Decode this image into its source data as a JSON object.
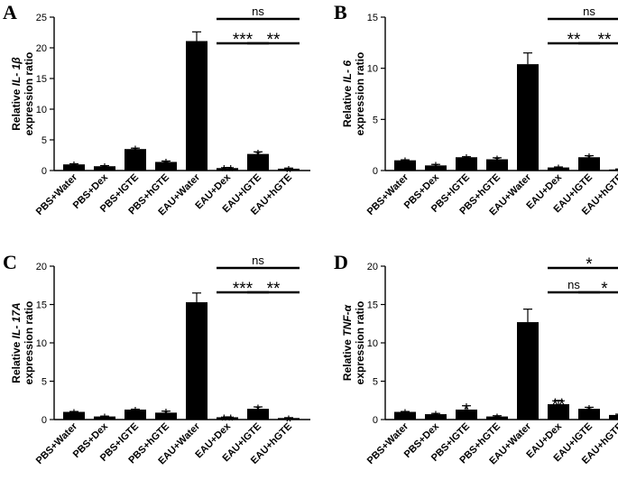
{
  "chart_data": [
    {
      "panel_label": "A",
      "type": "bar",
      "ylabel_prefix": "Relative ",
      "gene": "IL- 1β",
      "ylabel_suffix": "expression ratio",
      "ylim": [
        0,
        25
      ],
      "yticks": [
        0,
        5,
        10,
        15,
        20,
        25
      ],
      "categories": [
        "PBS+Water",
        "PBS+Dex",
        "PBS+lGTE",
        "PBS+hGTE",
        "EAU+Water",
        "EAU+Dex",
        "EAU+lGTE",
        "EAU+hGTE"
      ],
      "values": [
        1.0,
        0.7,
        3.5,
        1.4,
        21.1,
        0.4,
        2.7,
        0.3
      ],
      "errors": [
        0.1,
        0.1,
        0.15,
        0.15,
        1.5,
        0.1,
        0.35,
        0.1
      ],
      "bar_annotations": [
        "*",
        "*",
        "*",
        "*",
        "",
        "**",
        "*",
        "*"
      ],
      "comparisons": [
        {
          "from": 5,
          "to": 7,
          "label": "ns",
          "level": 0
        },
        {
          "from": 5,
          "to": 6,
          "label": "***",
          "level": 1
        },
        {
          "from": 6,
          "to": 7,
          "label": "**",
          "level": 1
        }
      ]
    },
    {
      "panel_label": "B",
      "type": "bar",
      "ylabel_prefix": "Relative ",
      "gene": "IL- 6",
      "ylabel_suffix": "expression ratio",
      "ylim": [
        0,
        15
      ],
      "yticks": [
        0,
        5,
        10,
        15
      ],
      "categories": [
        "PBS+Water",
        "PBS+Dex",
        "PBS+lGTE",
        "PBS+hGTE",
        "EAU+Water",
        "EAU+Dex",
        "EAU+lGTE",
        "EAU+hGTE"
      ],
      "values": [
        1.0,
        0.5,
        1.3,
        1.1,
        10.4,
        0.3,
        1.3,
        0.1
      ],
      "errors": [
        0.05,
        0.1,
        0.05,
        0.15,
        1.1,
        0.05,
        0.15,
        0.05
      ],
      "bar_annotations": [
        "*",
        "*",
        "*",
        "*",
        "",
        "*",
        "*",
        "*"
      ],
      "comparisons": [
        {
          "from": 5,
          "to": 7,
          "label": "ns",
          "level": 0
        },
        {
          "from": 5,
          "to": 6,
          "label": "**",
          "level": 1
        },
        {
          "from": 6,
          "to": 7,
          "label": "**",
          "level": 1
        }
      ]
    },
    {
      "panel_label": "C",
      "type": "bar",
      "ylabel_prefix": "Relative ",
      "gene": "IL- 17A",
      "ylabel_suffix": "expression ratio",
      "ylim": [
        0,
        20
      ],
      "yticks": [
        0,
        5,
        10,
        15,
        20
      ],
      "categories": [
        "PBS+Water",
        "PBS+Dex",
        "PBS+lGTE",
        "PBS+hGTE",
        "EAU+Water",
        "EAU+Dex",
        "EAU+lGTE",
        "EAU+hGTE"
      ],
      "values": [
        1.0,
        0.4,
        1.3,
        0.9,
        15.3,
        0.3,
        1.4,
        0.2
      ],
      "errors": [
        0.05,
        0.05,
        0.05,
        0.2,
        1.2,
        0.05,
        0.25,
        0.05
      ],
      "bar_annotations": [
        "*",
        "*",
        "*",
        "*",
        "",
        "**",
        "*",
        "*"
      ],
      "comparisons": [
        {
          "from": 5,
          "to": 7,
          "label": "ns",
          "level": 0
        },
        {
          "from": 5,
          "to": 6,
          "label": "***",
          "level": 1
        },
        {
          "from": 6,
          "to": 7,
          "label": "**",
          "level": 1
        }
      ]
    },
    {
      "panel_label": "D",
      "type": "bar",
      "ylabel_prefix": "Relative ",
      "gene": "TNF-α",
      "ylabel_suffix": "expression ratio",
      "ylim": [
        0,
        20
      ],
      "yticks": [
        0,
        5,
        10,
        15,
        20
      ],
      "categories": [
        "PBS+Water",
        "PBS+Dex",
        "PBS+lGTE",
        "PBS+hGTE",
        "EAU+Water",
        "EAU+Dex",
        "EAU+lGTE",
        "EAU+hGTE"
      ],
      "values": [
        1.0,
        0.7,
        1.3,
        0.4,
        12.7,
        2.0,
        1.4,
        0.6
      ],
      "errors": [
        0.05,
        0.1,
        0.5,
        0.1,
        1.7,
        0.5,
        0.2,
        0.1
      ],
      "bar_annotations": [
        "*",
        "*",
        "*",
        "*",
        "",
        "**",
        "*",
        "*"
      ],
      "comparisons": [
        {
          "from": 5,
          "to": 7,
          "label": "*",
          "level": 0
        },
        {
          "from": 5,
          "to": 6,
          "label": "ns",
          "level": 1
        },
        {
          "from": 6,
          "to": 7,
          "label": "*",
          "level": 1
        }
      ]
    }
  ]
}
